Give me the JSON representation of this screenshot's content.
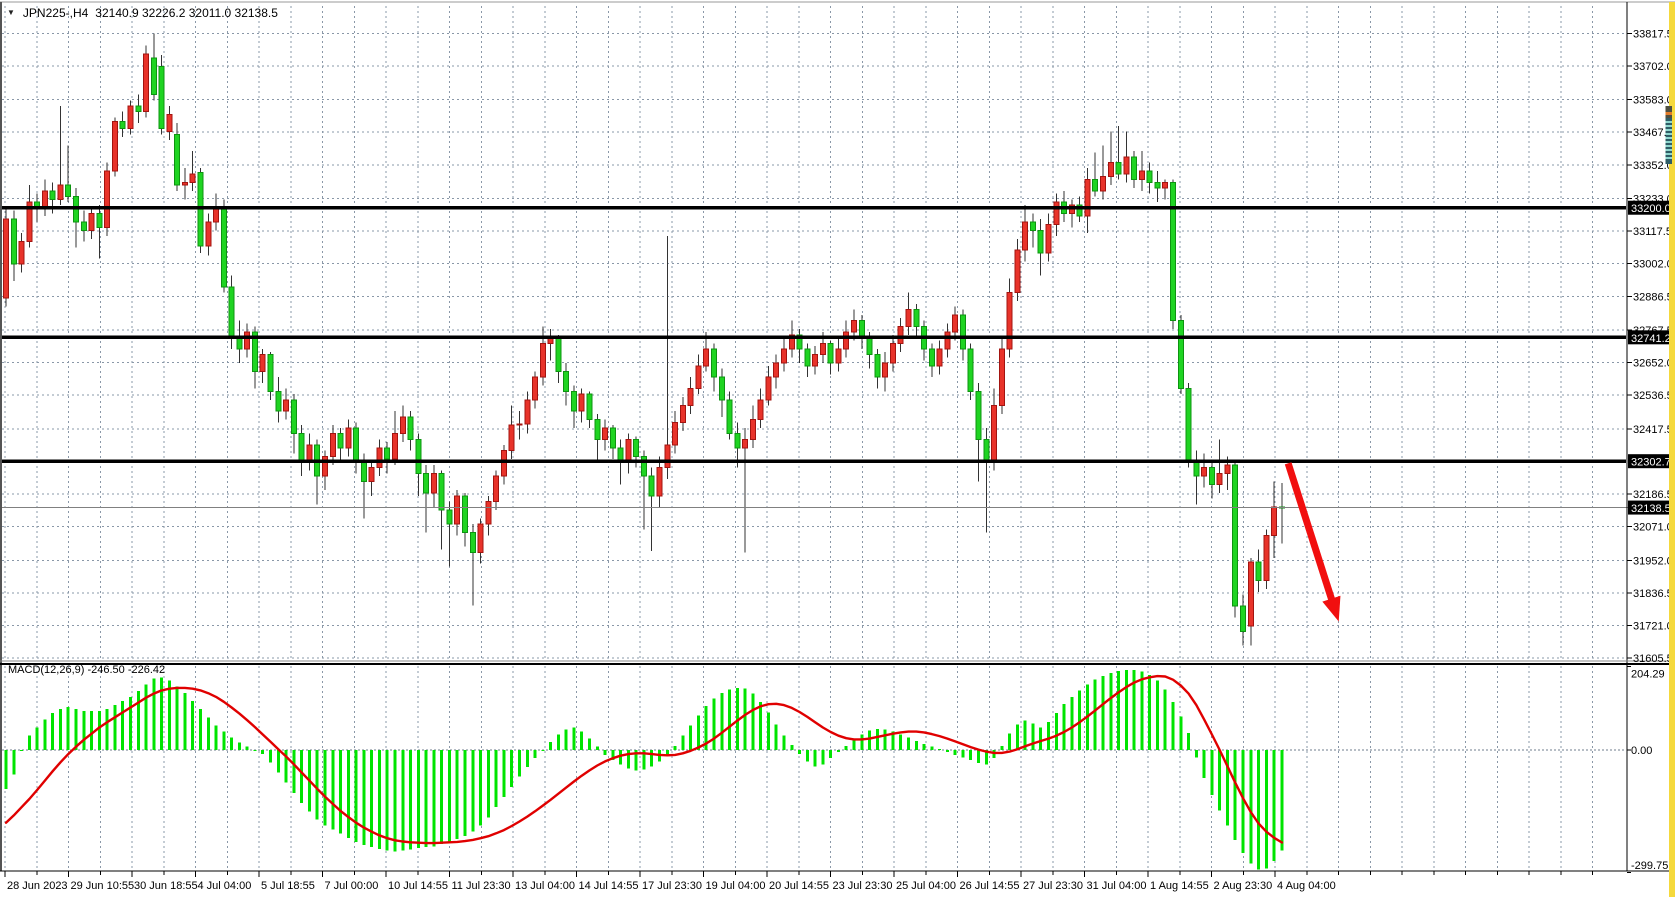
{
  "header": {
    "dropdown_icon": "▼",
    "title": "JPN225-,H4",
    "ohlc": "32140.9 32226.2 32011.0 32138.5",
    "open": "32140.9",
    "high": "32226.2",
    "low": "32011.0",
    "close": "32138.5"
  },
  "macd_panel": {
    "label": "MACD(12,26,9) -246.50 -226.42",
    "name": "MACD",
    "params": "12,26,9",
    "main_value": "-246.50",
    "signal_value": "-226.42"
  },
  "colors": {
    "bull_candle": "#e8332a",
    "bull_stroke": "#a31410",
    "bear_candle": "#1fd422",
    "bear_stroke": "#0d9410",
    "wick": "#333333",
    "grid": "#8a98a8",
    "level_line": "#000000",
    "current_price_line": "#808080",
    "price_label_bg": "#000000",
    "price_label_text": "#ffffff",
    "macd_hist": "#00e400",
    "macd_signal": "#e00000",
    "arrow": "#f10f0f",
    "scrollbar_track": "#f5d93c",
    "scrollbar_thumb": "#2f5d66",
    "scrollbar_thumb_cap": "#4d4f42",
    "scrollbar_stripe": "#8fd8cf",
    "axis_text": "#000000",
    "border": "#000000"
  },
  "chart_data": {
    "type": "candlestick_with_macd",
    "title": "JPN225-,H4",
    "symbol": "JPN225-",
    "timeframe": "H4",
    "price_axis_ticks": [
      33817.5,
      33702.0,
      33583.0,
      33467.5,
      33352.0,
      33233.0,
      33117.5,
      33002.0,
      32886.5,
      32767.5,
      32652.0,
      32536.5,
      32417.5,
      32186.5,
      32071.0,
      31952.0,
      31836.5,
      31721.0,
      31605.5
    ],
    "levels": [
      33200.0,
      32741.2,
      32302.7
    ],
    "current_price": 32138.5,
    "time_ticks": [
      "28 Jun 2023",
      "29 Jun 10:55",
      "30 Jun 18:55",
      "4 Jul 04:00",
      "5 Jul 18:55",
      "7 Jul 00:00",
      "10 Jul 14:55",
      "11 Jul 23:30",
      "13 Jul 04:00",
      "14 Jul 14:55",
      "17 Jul 23:30",
      "19 Jul 04:00",
      "20 Jul 14:55",
      "23 Jul 23:30",
      "25 Jul 04:00",
      "26 Jul 14:55",
      "27 Jul 23:30",
      "31 Jul 04:00",
      "1 Aug 14:55",
      "2 Aug 23:30",
      "4 Aug 04:00"
    ],
    "candles_ohlc": [
      [
        32880,
        33200,
        32850,
        33160
      ],
      [
        33160,
        33190,
        32940,
        33000
      ],
      [
        33000,
        33110,
        32970,
        33080
      ],
      [
        33080,
        33280,
        33060,
        33220
      ],
      [
        33220,
        33250,
        33150,
        33200
      ],
      [
        33200,
        33300,
        33170,
        33260
      ],
      [
        33260,
        33290,
        33180,
        33230
      ],
      [
        33230,
        33560,
        33210,
        33280
      ],
      [
        33280,
        33420,
        33220,
        33240
      ],
      [
        33240,
        33270,
        33060,
        33150
      ],
      [
        33150,
        33190,
        33080,
        33120
      ],
      [
        33120,
        33200,
        33090,
        33180
      ],
      [
        33180,
        33210,
        33020,
        33130
      ],
      [
        33130,
        33360,
        33100,
        33330
      ],
      [
        33330,
        33520,
        33310,
        33505
      ],
      [
        33505,
        33540,
        33450,
        33480
      ],
      [
        33480,
        33580,
        33460,
        33560
      ],
      [
        33560,
        33600,
        33500,
        33540
      ],
      [
        33540,
        33775,
        33520,
        33745
      ],
      [
        33730,
        33817,
        33580,
        33600
      ],
      [
        33700,
        33740,
        33460,
        33480
      ],
      [
        33470,
        33560,
        33440,
        33530
      ],
      [
        33460,
        33500,
        33260,
        33280
      ],
      [
        33280,
        33340,
        33230,
        33290
      ],
      [
        33290,
        33400,
        33260,
        33320
      ],
      [
        33325,
        33340,
        33040,
        33065
      ],
      [
        33065,
        33180,
        33030,
        33150
      ],
      [
        33150,
        33250,
        33120,
        33200
      ],
      [
        33200,
        33230,
        32900,
        32920
      ],
      [
        32920,
        32960,
        32700,
        32740
      ],
      [
        32740,
        32800,
        32650,
        32700
      ],
      [
        32700,
        32790,
        32670,
        32760
      ],
      [
        32760,
        32780,
        32560,
        32620
      ],
      [
        32620,
        32700,
        32580,
        32680
      ],
      [
        32680,
        32690,
        32520,
        32550
      ],
      [
        32550,
        32600,
        32440,
        32480
      ],
      [
        32480,
        32560,
        32450,
        32520
      ],
      [
        32520,
        32540,
        32330,
        32400
      ],
      [
        32400,
        32430,
        32250,
        32300
      ],
      [
        32300,
        32400,
        32270,
        32360
      ],
      [
        32360,
        32380,
        32150,
        32250
      ],
      [
        32250,
        32340,
        32200,
        32320
      ],
      [
        32320,
        32430,
        32290,
        32400
      ],
      [
        32400,
        32420,
        32300,
        32350
      ],
      [
        32350,
        32450,
        32320,
        32420
      ],
      [
        32420,
        32440,
        32260,
        32300
      ],
      [
        32300,
        32330,
        32100,
        32230
      ],
      [
        32230,
        32300,
        32180,
        32280
      ],
      [
        32280,
        32380,
        32250,
        32350
      ],
      [
        32350,
        32370,
        32260,
        32310
      ],
      [
        32310,
        32480,
        32290,
        32400
      ],
      [
        32400,
        32500,
        32370,
        32460
      ],
      [
        32460,
        32480,
        32340,
        32380
      ],
      [
        32380,
        32400,
        32180,
        32260
      ],
      [
        32260,
        32290,
        32050,
        32190
      ],
      [
        32190,
        32290,
        32140,
        32260
      ],
      [
        32260,
        32270,
        31990,
        32130
      ],
      [
        32130,
        32160,
        31930,
        32080
      ],
      [
        32080,
        32200,
        32040,
        32180
      ],
      [
        32180,
        32190,
        32000,
        32050
      ],
      [
        32050,
        32080,
        31791,
        31980
      ],
      [
        31980,
        32100,
        31940,
        32080
      ],
      [
        32080,
        32180,
        32040,
        32160
      ],
      [
        32160,
        32270,
        32130,
        32250
      ],
      [
        32250,
        32360,
        32220,
        32340
      ],
      [
        32340,
        32500,
        32310,
        32430
      ],
      [
        32430,
        32480,
        32380,
        32435
      ],
      [
        32435,
        32550,
        32400,
        32520
      ],
      [
        32520,
        32620,
        32490,
        32600
      ],
      [
        32600,
        32780,
        32570,
        32720
      ],
      [
        32720,
        32770,
        32660,
        32740
      ],
      [
        32740,
        32750,
        32580,
        32620
      ],
      [
        32620,
        32650,
        32500,
        32550
      ],
      [
        32550,
        32570,
        32420,
        32480
      ],
      [
        32480,
        32560,
        32440,
        32540
      ],
      [
        32540,
        32550,
        32420,
        32450
      ],
      [
        32450,
        32470,
        32300,
        32380
      ],
      [
        32380,
        32450,
        32340,
        32420
      ],
      [
        32420,
        32430,
        32310,
        32350
      ],
      [
        32350,
        32380,
        32220,
        32300
      ],
      [
        32300,
        32400,
        32260,
        32380
      ],
      [
        32380,
        32390,
        32280,
        32320
      ],
      [
        32320,
        32340,
        32060,
        32250
      ],
      [
        32250,
        32280,
        31985,
        32180
      ],
      [
        32180,
        32320,
        32140,
        32280
      ],
      [
        32280,
        33100,
        32240,
        32360
      ],
      [
        32360,
        32480,
        32330,
        32440
      ],
      [
        32440,
        32530,
        32410,
        32500
      ],
      [
        32500,
        32600,
        32470,
        32560
      ],
      [
        32560,
        32680,
        32540,
        32640
      ],
      [
        32640,
        32760,
        32620,
        32700
      ],
      [
        32700,
        32720,
        32550,
        32600
      ],
      [
        32600,
        32630,
        32460,
        32520
      ],
      [
        32520,
        32550,
        32380,
        32400
      ],
      [
        32400,
        32440,
        32280,
        32350
      ],
      [
        32350,
        32420,
        31980,
        32380
      ],
      [
        32380,
        32500,
        32350,
        32450
      ],
      [
        32450,
        32560,
        32420,
        32520
      ],
      [
        32520,
        32640,
        32500,
        32600
      ],
      [
        32600,
        32680,
        32560,
        32650
      ],
      [
        32650,
        32740,
        32620,
        32700
      ],
      [
        32700,
        32800,
        32670,
        32750
      ],
      [
        32750,
        32770,
        32650,
        32700
      ],
      [
        32700,
        32720,
        32600,
        32640
      ],
      [
        32640,
        32710,
        32610,
        32680
      ],
      [
        32680,
        32760,
        32650,
        32720
      ],
      [
        32720,
        32730,
        32610,
        32650
      ],
      [
        32650,
        32740,
        32620,
        32700
      ],
      [
        32700,
        32800,
        32670,
        32760
      ],
      [
        32760,
        32840,
        32730,
        32800
      ],
      [
        32800,
        32820,
        32700,
        32740
      ],
      [
        32740,
        32760,
        32630,
        32680
      ],
      [
        32680,
        32700,
        32560,
        32600
      ],
      [
        32600,
        32690,
        32550,
        32650
      ],
      [
        32650,
        32750,
        32620,
        32720
      ],
      [
        32720,
        32810,
        32690,
        32780
      ],
      [
        32780,
        32900,
        32750,
        32840
      ],
      [
        32840,
        32860,
        32740,
        32780
      ],
      [
        32780,
        32800,
        32660,
        32700
      ],
      [
        32700,
        32720,
        32600,
        32640
      ],
      [
        32640,
        32730,
        32610,
        32700
      ],
      [
        32700,
        32790,
        32670,
        32760
      ],
      [
        32760,
        32850,
        32730,
        32820
      ],
      [
        32820,
        32840,
        32660,
        32700
      ],
      [
        32700,
        32720,
        32520,
        32550
      ],
      [
        32550,
        32580,
        32230,
        32380
      ],
      [
        32380,
        32420,
        32050,
        32300
      ],
      [
        32300,
        32560,
        32270,
        32500
      ],
      [
        32500,
        32740,
        32470,
        32700
      ],
      [
        32700,
        32950,
        32670,
        32900
      ],
      [
        32900,
        33090,
        32870,
        33050
      ],
      [
        33050,
        33210,
        33010,
        33150
      ],
      [
        33150,
        33180,
        33060,
        33120
      ],
      [
        33120,
        33160,
        32960,
        33040
      ],
      [
        33040,
        33180,
        33010,
        33140
      ],
      [
        33140,
        33250,
        33100,
        33220
      ],
      [
        33220,
        33260,
        33150,
        33180
      ],
      [
        33180,
        33230,
        33130,
        33210
      ],
      [
        33210,
        33240,
        33150,
        33170
      ],
      [
        33170,
        33340,
        33110,
        33300
      ],
      [
        33300,
        33395,
        33240,
        33260
      ],
      [
        33260,
        33420,
        33230,
        33310
      ],
      [
        33310,
        33470,
        33280,
        33360
      ],
      [
        33360,
        33490,
        33300,
        33320
      ],
      [
        33320,
        33470,
        33290,
        33380
      ],
      [
        33380,
        33400,
        33270,
        33300
      ],
      [
        33300,
        33400,
        33260,
        33330
      ],
      [
        33330,
        33360,
        33250,
        33290
      ],
      [
        33290,
        33330,
        33220,
        33270
      ],
      [
        33270,
        33300,
        33230,
        33290
      ],
      [
        33290,
        33300,
        32770,
        32800
      ],
      [
        32800,
        32820,
        32540,
        32560
      ],
      [
        32560,
        32580,
        32280,
        32300
      ],
      [
        32300,
        32340,
        32150,
        32250
      ],
      [
        32250,
        32330,
        32210,
        32280
      ],
      [
        32280,
        32300,
        32170,
        32220
      ],
      [
        32220,
        32380,
        32190,
        32260
      ],
      [
        32260,
        32320,
        32200,
        32290
      ],
      [
        32290,
        32300,
        31750,
        31790
      ],
      [
        31790,
        31830,
        31650,
        31700
      ],
      [
        31720,
        31960,
        31650,
        31945
      ],
      [
        31945,
        31990,
        31840,
        31880
      ],
      [
        31880,
        32060,
        31850,
        32040
      ],
      [
        32040,
        32230,
        31960,
        32140
      ],
      [
        32140.9,
        32226.2,
        32011.0,
        32138.5
      ]
    ],
    "macd": {
      "label": "MACD(12,26,9)",
      "axis_ticks": [
        204.29,
        0.0,
        -299.75
      ],
      "main_last": -246.5,
      "signal_last": -226.42,
      "histogram": [
        -95,
        -60,
        0,
        35,
        55,
        75,
        90,
        100,
        105,
        100,
        95,
        95,
        95,
        100,
        110,
        120,
        130,
        145,
        160,
        175,
        178,
        170,
        155,
        140,
        120,
        100,
        80,
        60,
        45,
        30,
        18,
        8,
        0,
        -10,
        -30,
        -55,
        -80,
        -105,
        -130,
        -150,
        -170,
        -185,
        -195,
        -205,
        -215,
        -225,
        -232,
        -238,
        -242,
        -246,
        -248,
        -246,
        -243,
        -240,
        -238,
        -236,
        -230,
        -225,
        -218,
        -210,
        -200,
        -185,
        -165,
        -140,
        -115,
        -90,
        -65,
        -42,
        -20,
        0,
        20,
        38,
        50,
        55,
        45,
        28,
        8,
        -12,
        -25,
        -35,
        -45,
        -50,
        -48,
        -40,
        -28,
        -12,
        10,
        35,
        60,
        85,
        108,
        126,
        140,
        148,
        152,
        150,
        138,
        118,
        92,
        62,
        35,
        12,
        -10,
        -28,
        -40,
        -35,
        -20,
        -5,
        10,
        25,
        38,
        48,
        52,
        50,
        45,
        38,
        30,
        22,
        15,
        8,
        2,
        -5,
        -12,
        -18,
        -25,
        -32,
        -35,
        -20,
        10,
        40,
        62,
        72,
        65,
        55,
        68,
        90,
        112,
        130,
        146,
        160,
        172,
        181,
        188,
        193,
        196,
        196,
        192,
        184,
        170,
        148,
        118,
        82,
        42,
        -18,
        -68,
        -110,
        -148,
        -185,
        -220,
        -252,
        -278,
        -293,
        -290,
        -272,
        -246.5
      ],
      "signal": [
        -178,
        -160,
        -140,
        -120,
        -98,
        -75,
        -52,
        -30,
        -10,
        8,
        25,
        40,
        55,
        68,
        80,
        92,
        104,
        116,
        128,
        138,
        146,
        150,
        152,
        152,
        150,
        146,
        139,
        130,
        118,
        104,
        89,
        73,
        56,
        38,
        20,
        2,
        -16,
        -35,
        -55,
        -75,
        -95,
        -114,
        -132,
        -149,
        -164,
        -178,
        -190,
        -200,
        -209,
        -216,
        -221,
        -224,
        -226,
        -227,
        -228,
        -228,
        -227,
        -226,
        -225,
        -223,
        -220,
        -216,
        -211,
        -204,
        -196,
        -186,
        -175,
        -163,
        -150,
        -136,
        -122,
        -107,
        -92,
        -77,
        -63,
        -50,
        -38,
        -28,
        -20,
        -14,
        -10,
        -8,
        -8,
        -10,
        -12,
        -13,
        -12,
        -8,
        -2,
        6,
        16,
        28,
        42,
        57,
        72,
        86,
        98,
        107,
        112,
        113,
        110,
        103,
        93,
        81,
        68,
        55,
        44,
        35,
        29,
        26,
        26,
        28,
        32,
        36,
        40,
        43,
        45,
        45,
        43,
        39,
        34,
        28,
        21,
        14,
        7,
        1,
        -4,
        -7,
        -7,
        -4,
        2,
        9,
        16,
        22,
        28,
        35,
        44,
        55,
        68,
        82,
        97,
        112,
        127,
        141,
        154,
        165,
        173,
        178,
        181,
        180,
        172,
        158,
        138,
        110,
        75,
        38,
        0,
        -40,
        -80,
        -118,
        -152,
        -180,
        -200,
        -215,
        -226.42
      ]
    },
    "annotation_arrow": {
      "from": {
        "bar": 164.8,
        "price": 32295
      },
      "to": {
        "bar": 171.3,
        "price": 31735
      }
    }
  }
}
